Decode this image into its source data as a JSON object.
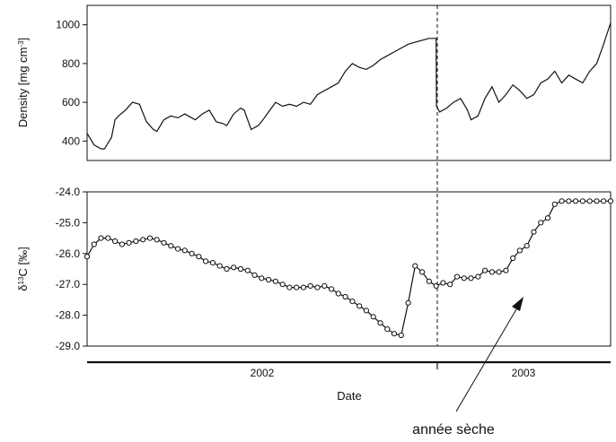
{
  "chart_data": [
    {
      "type": "line",
      "panel": "top",
      "ylabel_main": "Density [mg cm",
      "ylabel_sup": "-3",
      "ylabel_end": "]",
      "ylim": [
        300,
        1100
      ],
      "yticks": [
        "1000",
        "800",
        "600",
        "400"
      ],
      "ytick_values": [
        1000,
        800,
        600,
        400
      ],
      "x_range": [
        0,
        1.5
      ],
      "divider_x": 1.0,
      "series": [
        {
          "x": [
            0,
            0.02,
            0.04,
            0.05,
            0.07,
            0.08,
            0.09,
            0.11,
            0.13,
            0.15,
            0.17,
            0.19,
            0.2,
            0.22,
            0.24,
            0.26,
            0.28,
            0.29,
            0.31,
            0.33,
            0.35,
            0.37,
            0.39,
            0.4,
            0.42,
            0.44,
            0.45,
            0.47,
            0.49,
            0.5,
            0.52,
            0.54,
            0.56,
            0.58,
            0.6,
            0.62,
            0.64,
            0.66,
            0.68,
            0.7,
            0.72,
            0.74,
            0.76,
            0.78,
            0.8,
            0.82,
            0.84,
            0.86,
            0.88,
            0.9,
            0.92,
            0.94,
            0.96,
            0.98,
            1.0,
            1.001,
            1.01,
            1.03,
            1.05,
            1.07,
            1.09,
            1.1,
            1.12,
            1.14,
            1.16,
            1.18,
            1.2,
            1.22,
            1.24,
            1.26,
            1.28,
            1.3,
            1.32,
            1.34,
            1.36,
            1.38,
            1.4,
            1.42,
            1.44,
            1.46,
            1.48,
            1.5
          ],
          "y": [
            440,
            380,
            360,
            360,
            420,
            510,
            530,
            560,
            600,
            590,
            500,
            460,
            450,
            510,
            530,
            520,
            540,
            530,
            510,
            540,
            560,
            500,
            490,
            480,
            540,
            570,
            560,
            460,
            480,
            500,
            550,
            600,
            580,
            590,
            580,
            600,
            590,
            640,
            660,
            680,
            700,
            760,
            800,
            780,
            770,
            790,
            820,
            840,
            860,
            880,
            900,
            910,
            920,
            930,
            930,
            580,
            550,
            570,
            600,
            620,
            560,
            510,
            530,
            620,
            680,
            600,
            640,
            690,
            660,
            620,
            640,
            700,
            720,
            760,
            700,
            740,
            720,
            700,
            760,
            800,
            900,
            1010
          ]
        }
      ]
    },
    {
      "type": "line",
      "panel": "bottom",
      "ylabel_main": "δ",
      "ylabel_sup": "13",
      "ylabel_end": "C [‰]",
      "ylim": [
        -29.0,
        -24.0
      ],
      "yticks": [
        "-24.0",
        "-25.0",
        "-26.0",
        "-27.0",
        "-28.0",
        "-29.0"
      ],
      "ytick_values": [
        -24.0,
        -25.0,
        -26.0,
        -27.0,
        -28.0,
        -29.0
      ],
      "x_range": [
        0,
        1.5
      ],
      "divider_x": 1.0,
      "markers": "open-circle",
      "series": [
        {
          "x": [
            0.0,
            0.02,
            0.04,
            0.06,
            0.08,
            0.1,
            0.12,
            0.14,
            0.16,
            0.18,
            0.2,
            0.22,
            0.24,
            0.26,
            0.28,
            0.3,
            0.32,
            0.34,
            0.36,
            0.38,
            0.4,
            0.42,
            0.44,
            0.46,
            0.48,
            0.5,
            0.52,
            0.54,
            0.56,
            0.58,
            0.6,
            0.62,
            0.64,
            0.66,
            0.68,
            0.7,
            0.72,
            0.74,
            0.76,
            0.78,
            0.8,
            0.82,
            0.84,
            0.86,
            0.88,
            0.9,
            0.92,
            0.94,
            0.96,
            0.98,
            1.0,
            1.02,
            1.04,
            1.06,
            1.08,
            1.1,
            1.12,
            1.14,
            1.16,
            1.18,
            1.2,
            1.22,
            1.24,
            1.26,
            1.28,
            1.3,
            1.32,
            1.34,
            1.36,
            1.38,
            1.4,
            1.42,
            1.44,
            1.46,
            1.48,
            1.5
          ],
          "y": [
            -26.1,
            -25.7,
            -25.5,
            -25.5,
            -25.6,
            -25.7,
            -25.65,
            -25.6,
            -25.55,
            -25.5,
            -25.55,
            -25.65,
            -25.75,
            -25.85,
            -25.9,
            -26.0,
            -26.1,
            -26.25,
            -26.3,
            -26.4,
            -26.5,
            -26.45,
            -26.5,
            -26.55,
            -26.7,
            -26.8,
            -26.85,
            -26.9,
            -27.0,
            -27.1,
            -27.1,
            -27.1,
            -27.05,
            -27.1,
            -27.05,
            -27.15,
            -27.3,
            -27.4,
            -27.55,
            -27.7,
            -27.85,
            -28.05,
            -28.25,
            -28.45,
            -28.6,
            -28.65,
            -27.6,
            -26.4,
            -26.6,
            -26.9,
            -27.05,
            -26.95,
            -27.0,
            -26.75,
            -26.8,
            -26.8,
            -26.75,
            -26.55,
            -26.6,
            -26.6,
            -26.55,
            -26.15,
            -25.9,
            -25.75,
            -25.3,
            -25.0,
            -24.85,
            -24.4,
            -24.3,
            -24.3,
            -24.3,
            -24.3,
            -24.3,
            -24.3,
            -24.3,
            -24.3
          ]
        }
      ]
    }
  ],
  "xaxis": {
    "label": "Date",
    "year_labels": [
      "2002",
      "2003"
    ]
  },
  "annotation": {
    "text": "année sèche"
  }
}
